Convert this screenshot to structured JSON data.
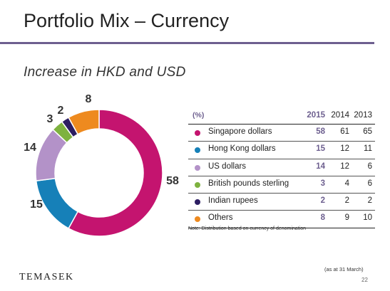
{
  "title": "Portfolio Mix – Currency",
  "subtitle": "Increase in HKD and USD",
  "chart_data": {
    "type": "pie",
    "categories": [
      "Singapore dollars",
      "Hong Kong dollars",
      "US dollars",
      "British pounds sterling",
      "Indian rupees",
      "Others"
    ],
    "values": [
      58,
      15,
      14,
      3,
      2,
      8
    ],
    "colors": [
      "#c4146f",
      "#1680b8",
      "#b392c8",
      "#7eb23f",
      "#2c1d62",
      "#ee8a1f"
    ],
    "labels": [
      "58",
      "15",
      "14",
      "3",
      "2",
      "8"
    ]
  },
  "table": {
    "unit_header": "(%)",
    "year_headers": [
      "2015",
      "2014",
      "2013"
    ],
    "rows": [
      {
        "name": "Singapore dollars",
        "v2015": "58",
        "v2014": "61",
        "v2013": "65"
      },
      {
        "name": "Hong Kong dollars",
        "v2015": "15",
        "v2014": "12",
        "v2013": "11"
      },
      {
        "name": "US dollars",
        "v2015": "14",
        "v2014": "12",
        "v2013": "6"
      },
      {
        "name": "British pounds sterling",
        "v2015": "3",
        "v2014": "4",
        "v2013": "6"
      },
      {
        "name": "Indian rupees",
        "v2015": "2",
        "v2014": "2",
        "v2013": "2"
      },
      {
        "name": "Others",
        "v2015": "8",
        "v2014": "9",
        "v2013": "10"
      }
    ]
  },
  "note": "Note: Distribution based on currency of denomination",
  "as_at": "(as at 31 March)",
  "page_number": "22",
  "logo_text": "TEMASEK"
}
